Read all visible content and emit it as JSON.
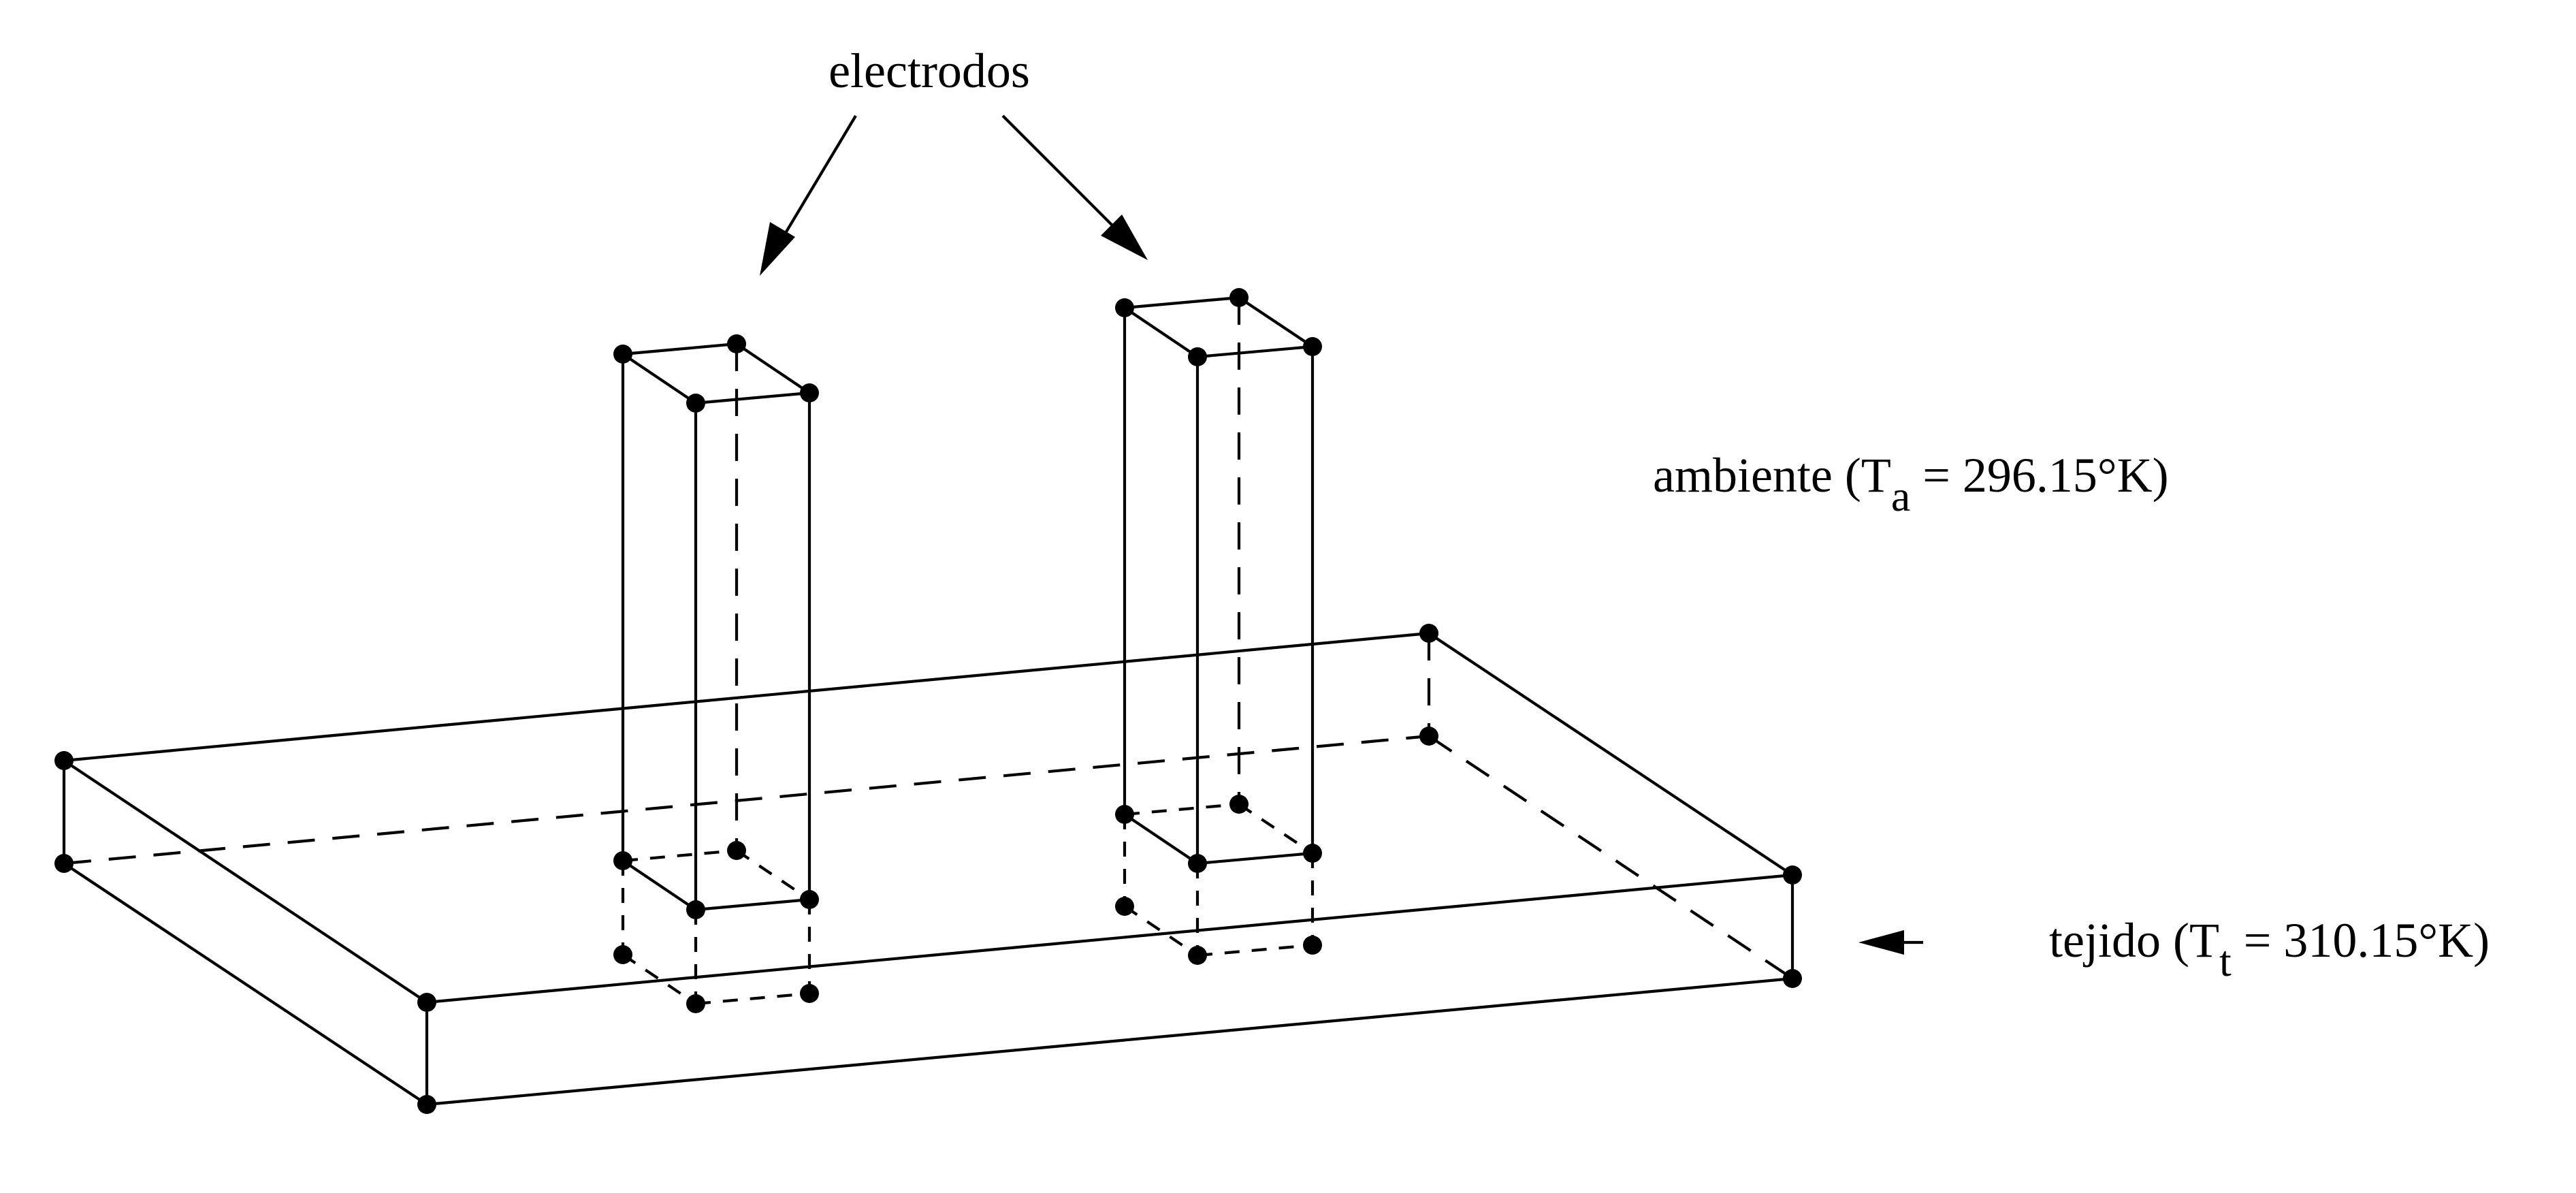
{
  "labels": {
    "electrodes": "electrodos",
    "ambient_prefix": "ambiente (T",
    "ambient_sub": "a",
    "ambient_suffix": " = 296.15°K)",
    "tissue_prefix": "tejido (T",
    "tissue_sub": "t",
    "tissue_suffix": " = 310.15°K)"
  },
  "colors": {
    "line": "#000000",
    "background": "#ffffff"
  }
}
